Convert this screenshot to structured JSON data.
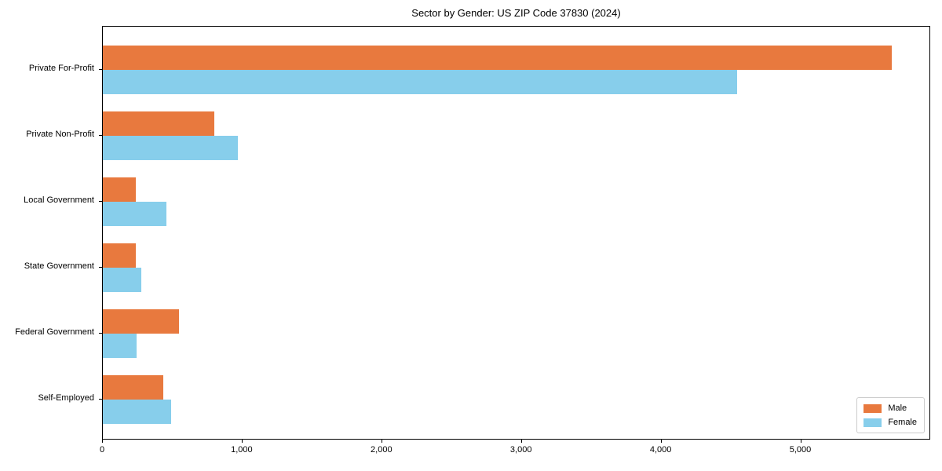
{
  "figure": {
    "background": "#ffffff",
    "axis_color": "#000000",
    "legend_border_color": "#cccccc"
  },
  "chart_data": {
    "type": "bar",
    "orientation": "horizontal",
    "title": "Sector by Gender: US ZIP Code 37830 (2024)",
    "categories": [
      "Private For-Profit",
      "Private Non-Profit",
      "Local Government",
      "State Government",
      "Federal Government",
      "Self-Employed"
    ],
    "series": [
      {
        "name": "Male",
        "color": "#e8793e",
        "values": [
          5650,
          800,
          235,
          235,
          545,
          435
        ]
      },
      {
        "name": "Female",
        "color": "#87ceeb",
        "values": [
          4540,
          965,
          455,
          275,
          240,
          490
        ]
      }
    ],
    "xlabel": "",
    "ylabel": "",
    "xlim": [
      0,
      5930
    ],
    "xticks": [
      0,
      1000,
      2000,
      3000,
      4000,
      5000
    ],
    "xtick_labels": [
      "0",
      "1,000",
      "2,000",
      "3,000",
      "4,000",
      "5,000"
    ],
    "grid": false,
    "legend_position": "lower right",
    "legend_entries": [
      "Male",
      "Female"
    ]
  }
}
